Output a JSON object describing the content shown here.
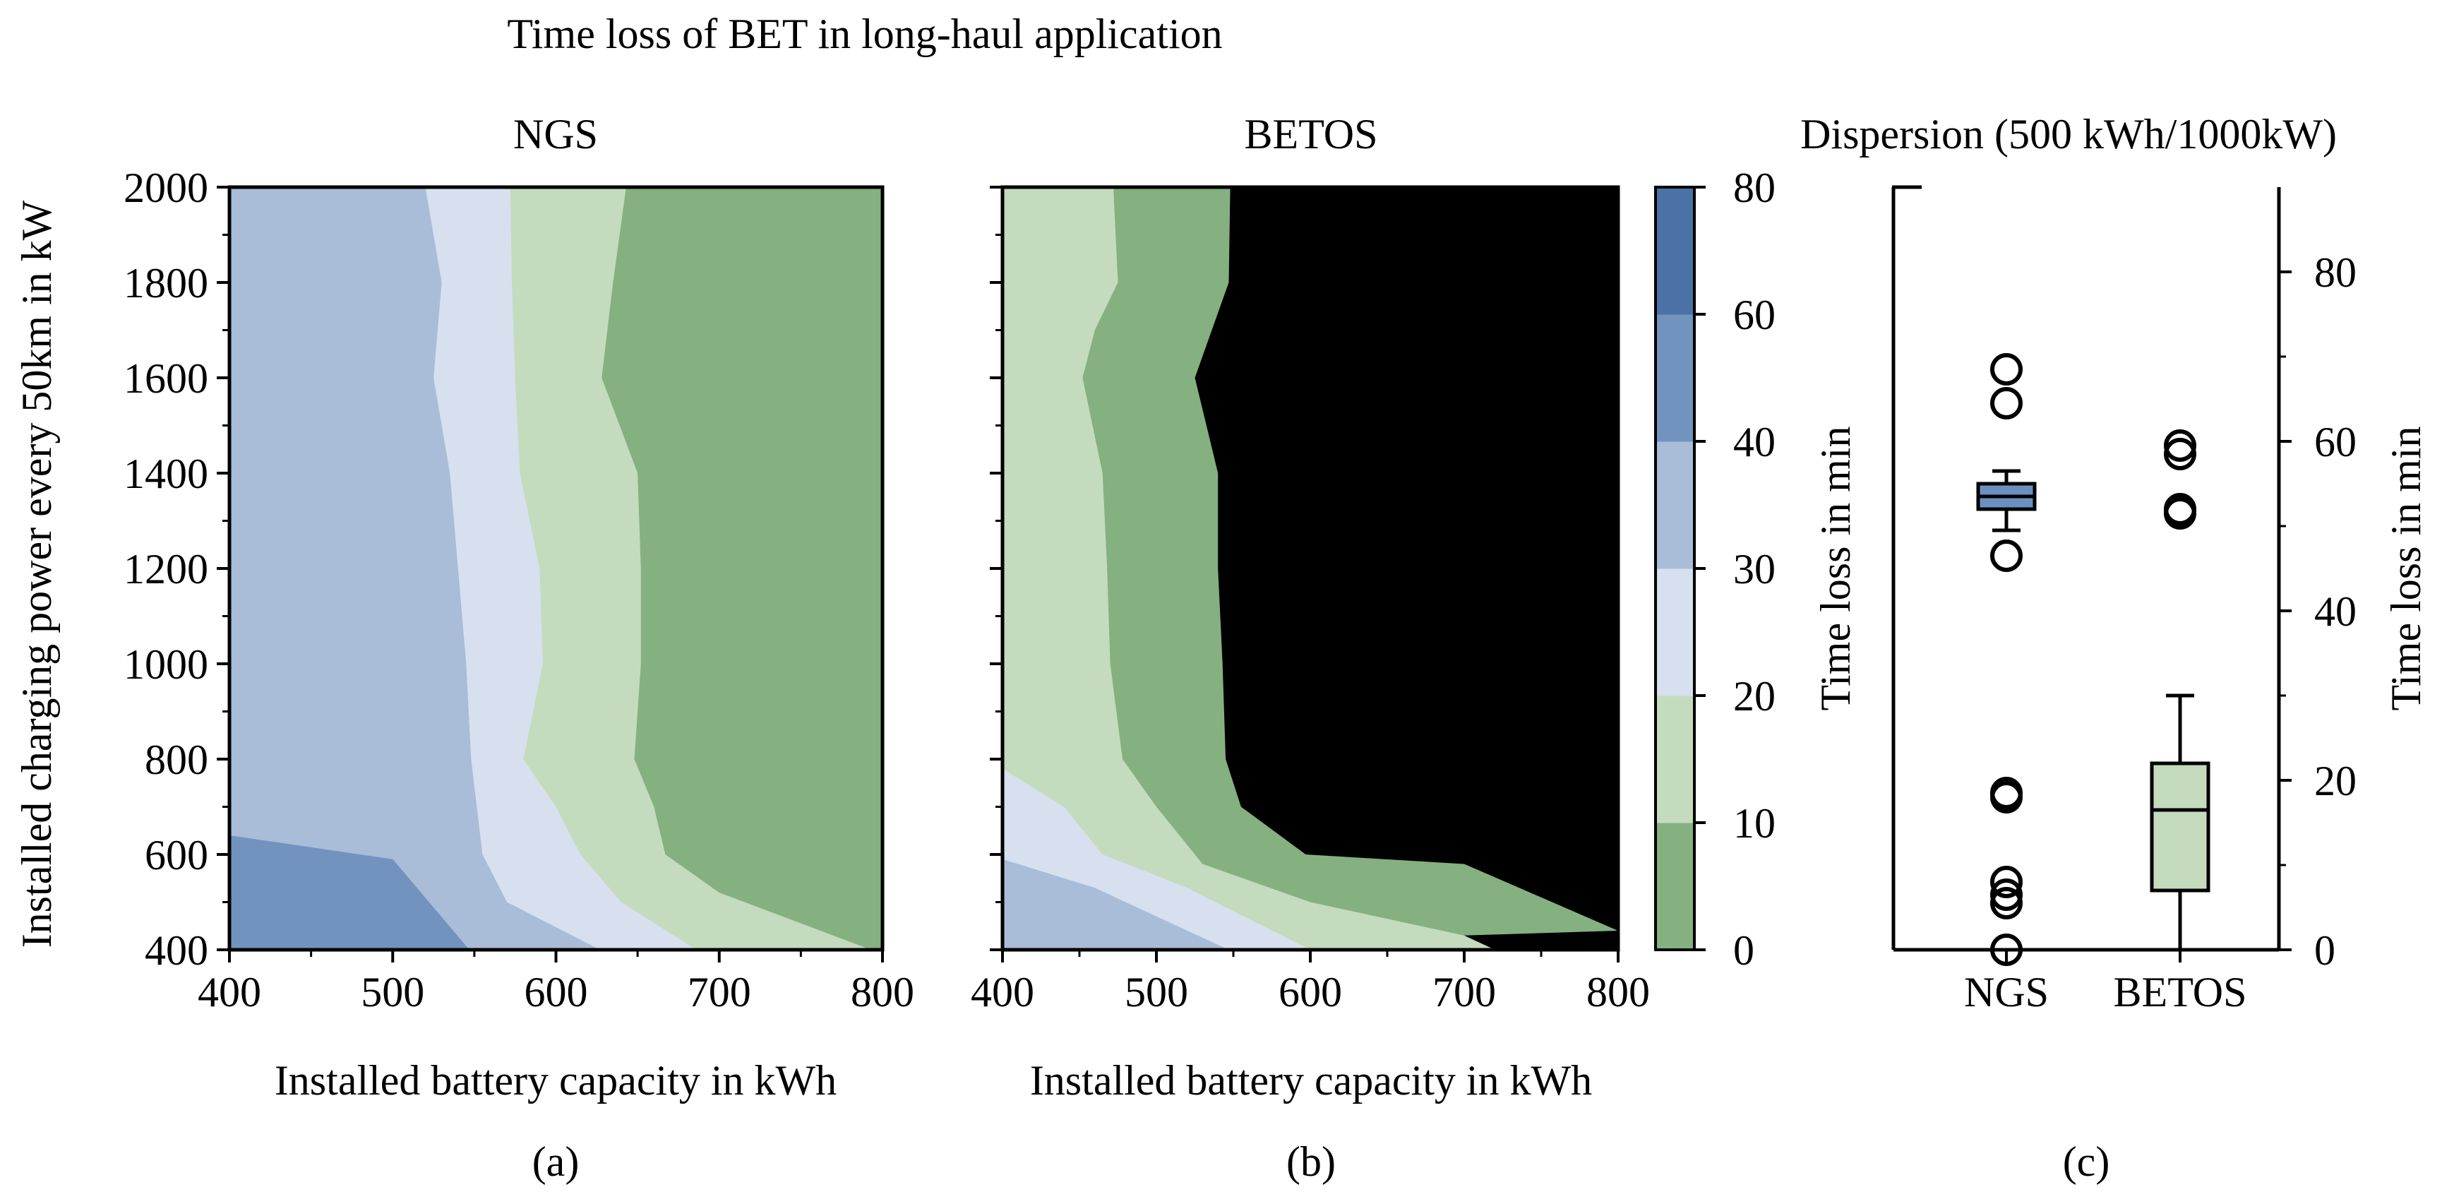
{
  "figure": {
    "title": "Time loss of BET in long-haul application"
  },
  "colors": {
    "levels": [
      "#85b080",
      "#c4dbbe",
      "#d6e0ee",
      "#a9bcd8",
      "#7193be",
      "#4a72a6"
    ],
    "ngs_box": "#6b8fc0",
    "betos_box": "#c4dbbe"
  },
  "chart_data": [
    {
      "type": "contour",
      "panel_label": "(a)",
      "title": "NGS",
      "xlabel": "Installed battery capacity in kWh",
      "ylabel": "Installed charging power every 50km in kW",
      "xlim": [
        400,
        800
      ],
      "ylim": [
        400,
        2000
      ],
      "xticks": [
        "400",
        "500",
        "600",
        "700",
        "800"
      ],
      "yticks": [
        "400",
        "600",
        "800",
        "1000",
        "1200",
        "1400",
        "1600",
        "1800",
        "2000"
      ],
      "level_bounds": [
        0,
        10,
        20,
        30,
        40,
        60,
        80
      ],
      "boundaries": [
        {
          "level": 60,
          "points": [
            [
              400,
              640
            ],
            [
              500,
              590
            ],
            [
              547,
              400
            ]
          ]
        },
        {
          "level": 40,
          "points": [
            [
              520,
              2000
            ],
            [
              530,
              1800
            ],
            [
              525,
              1600
            ],
            [
              535,
              1400
            ],
            [
              540,
              1200
            ],
            [
              545,
              1000
            ],
            [
              548,
              800
            ],
            [
              555,
              600
            ],
            [
              570,
              500
            ],
            [
              627,
              400
            ]
          ]
        },
        {
          "level": 30,
          "points": [
            [
              572,
              2000
            ],
            [
              573,
              1800
            ],
            [
              575,
              1600
            ],
            [
              578,
              1400
            ],
            [
              590,
              1200
            ],
            [
              592,
              1000
            ],
            [
              580,
              800
            ],
            [
              600,
              700
            ],
            [
              615,
              600
            ],
            [
              640,
              500
            ],
            [
              686,
              400
            ]
          ]
        },
        {
          "level": 20,
          "points": [
            [
              643,
              2000
            ],
            [
              635,
              1800
            ],
            [
              628,
              1600
            ],
            [
              650,
              1400
            ],
            [
              652,
              1200
            ],
            [
              652,
              1000
            ],
            [
              648,
              800
            ],
            [
              660,
              700
            ],
            [
              667,
              600
            ],
            [
              700,
              520
            ],
            [
              793,
              400
            ]
          ]
        }
      ]
    },
    {
      "type": "contour",
      "panel_label": "(b)",
      "title": "BETOS",
      "xlabel": "Installed battery capacity in kWh",
      "ylabel": "",
      "xlim": [
        400,
        800
      ],
      "ylim": [
        400,
        2000
      ],
      "xticks": [
        "400",
        "500",
        "600",
        "700",
        "800"
      ],
      "yticks": [],
      "colorbar": {
        "label": "Time loss in min",
        "ticks": [
          "0",
          "10",
          "20",
          "30",
          "40",
          "60",
          "80"
        ]
      },
      "level_bounds": [
        0,
        10,
        20,
        30,
        40,
        60,
        80
      ],
      "boundaries": [
        {
          "level": 40,
          "points": [
            [
              400,
              590
            ],
            [
              460,
              530
            ],
            [
              500,
              470
            ],
            [
              547,
              400
            ]
          ]
        },
        {
          "level": 30,
          "points": [
            [
              400,
              780
            ],
            [
              440,
              700
            ],
            [
              465,
              600
            ],
            [
              520,
              530
            ],
            [
              600,
              400
            ]
          ]
        },
        {
          "level": 20,
          "points": [
            [
              472,
              2000
            ],
            [
              475,
              1800
            ],
            [
              460,
              1700
            ],
            [
              452,
              1600
            ],
            [
              465,
              1400
            ],
            [
              468,
              1200
            ],
            [
              470,
              1000
            ],
            [
              478,
              800
            ],
            [
              500,
              700
            ],
            [
              530,
              580
            ],
            [
              600,
              500
            ],
            [
              700,
              430
            ],
            [
              720,
              400
            ]
          ]
        },
        {
          "level": 10,
          "points": [
            [
              548,
              2000
            ],
            [
              547,
              1800
            ],
            [
              525,
              1600
            ],
            [
              540,
              1400
            ],
            [
              540,
              1200
            ],
            [
              543,
              1000
            ],
            [
              545,
              800
            ],
            [
              555,
              700
            ],
            [
              597,
              600
            ],
            [
              700,
              580
            ],
            [
              800,
              440
            ]
          ]
        }
      ]
    },
    {
      "type": "box",
      "panel_label": "(c)",
      "title": "Dispersion (500 kWh/1000kW)",
      "ylabel": "Time loss in min",
      "ylim": [
        0,
        90
      ],
      "yticks": [
        "0",
        "20",
        "40",
        "60",
        "80"
      ],
      "categories": [
        "NGS",
        "BETOS"
      ],
      "boxes": [
        {
          "name": "NGS",
          "whislo": 49.5,
          "q1": 52.0,
          "median": 53.5,
          "q3": 55.0,
          "whishi": 56.5,
          "fliers": [
            0,
            5.5,
            6.5,
            8,
            18,
            18.5,
            46.5,
            64.5,
            68.5
          ]
        },
        {
          "name": "BETOS",
          "whislo": 0,
          "q1": 7,
          "median": 16.5,
          "q3": 22,
          "whishi": 30,
          "fliers": [
            51.5,
            52,
            58.5,
            59.5
          ]
        }
      ]
    }
  ]
}
